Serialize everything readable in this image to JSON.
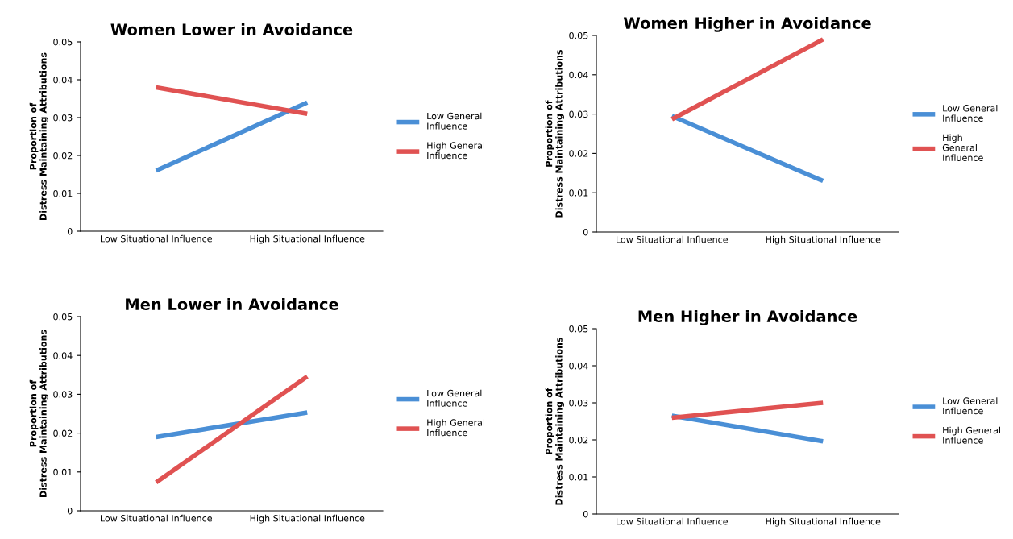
{
  "chart_data": [
    {
      "type": "line",
      "title": "Women Lower in Avoidance",
      "ylabel": "Proportion of\nDistress Maintaining Attributions",
      "categories": [
        "Low Situational Influence",
        "High Situational Influence"
      ],
      "ylim": [
        0,
        0.05
      ],
      "yticks": [
        0,
        0.01,
        0.02,
        0.03,
        0.04,
        0.05
      ],
      "grid": false,
      "legend": "right",
      "marker": "none",
      "line_style": "solid",
      "series": [
        {
          "name": "Low General\nInfluence",
          "color": "#4a8fd6",
          "values": [
            0.016,
            0.034
          ]
        },
        {
          "name": "High General\nInfluence",
          "color": "#e05252",
          "values": [
            0.038,
            0.031
          ]
        }
      ]
    },
    {
      "type": "line",
      "title": "Women Higher in Avoidance",
      "ylabel": "Proportion of\nDistress Maintaining Attributions",
      "categories": [
        "Low Situational Influence",
        "High Situational Influence"
      ],
      "ylim": [
        0,
        0.05
      ],
      "yticks": [
        0,
        0.01,
        0.02,
        0.03,
        0.04,
        0.05
      ],
      "grid": false,
      "legend": "right",
      "marker": "none",
      "line_style": "solid",
      "series": [
        {
          "name": "Low General\nInfluence",
          "color": "#4a8fd6",
          "values": [
            0.0295,
            0.013
          ]
        },
        {
          "name": "High\nGeneral\nInfluence",
          "color": "#e05252",
          "values": [
            0.0287,
            0.049
          ]
        }
      ]
    },
    {
      "type": "line",
      "title": "Men Lower in Avoidance",
      "ylabel": "Proportion of\nDistress Maintaining Attributions",
      "categories": [
        "Low Situational Influence",
        "High Situational Influence"
      ],
      "ylim": [
        0,
        0.05
      ],
      "yticks": [
        0,
        0.01,
        0.02,
        0.03,
        0.04,
        0.05
      ],
      "grid": false,
      "legend": "right",
      "marker": "none",
      "line_style": "solid",
      "series": [
        {
          "name": "Low General\nInfluence",
          "color": "#4a8fd6",
          "values": [
            0.019,
            0.0253
          ]
        },
        {
          "name": "High General\nInfluence",
          "color": "#e05252",
          "values": [
            0.0073,
            0.0346
          ]
        }
      ]
    },
    {
      "type": "line",
      "title": "Men Higher in Avoidance",
      "ylabel": "Proportion of\nDistress Maintaining Attributions",
      "categories": [
        "Low Situational Influence",
        "High Situational Influence"
      ],
      "ylim": [
        0,
        0.05
      ],
      "yticks": [
        0,
        0.01,
        0.02,
        0.03,
        0.04,
        0.05
      ],
      "grid": false,
      "legend": "right",
      "marker": "none",
      "line_style": "solid",
      "series": [
        {
          "name": "Low General\nInfluence",
          "color": "#4a8fd6",
          "values": [
            0.0265,
            0.0196
          ]
        },
        {
          "name": "High General\nInfluence",
          "color": "#e05252",
          "values": [
            0.026,
            0.03
          ]
        }
      ]
    }
  ]
}
